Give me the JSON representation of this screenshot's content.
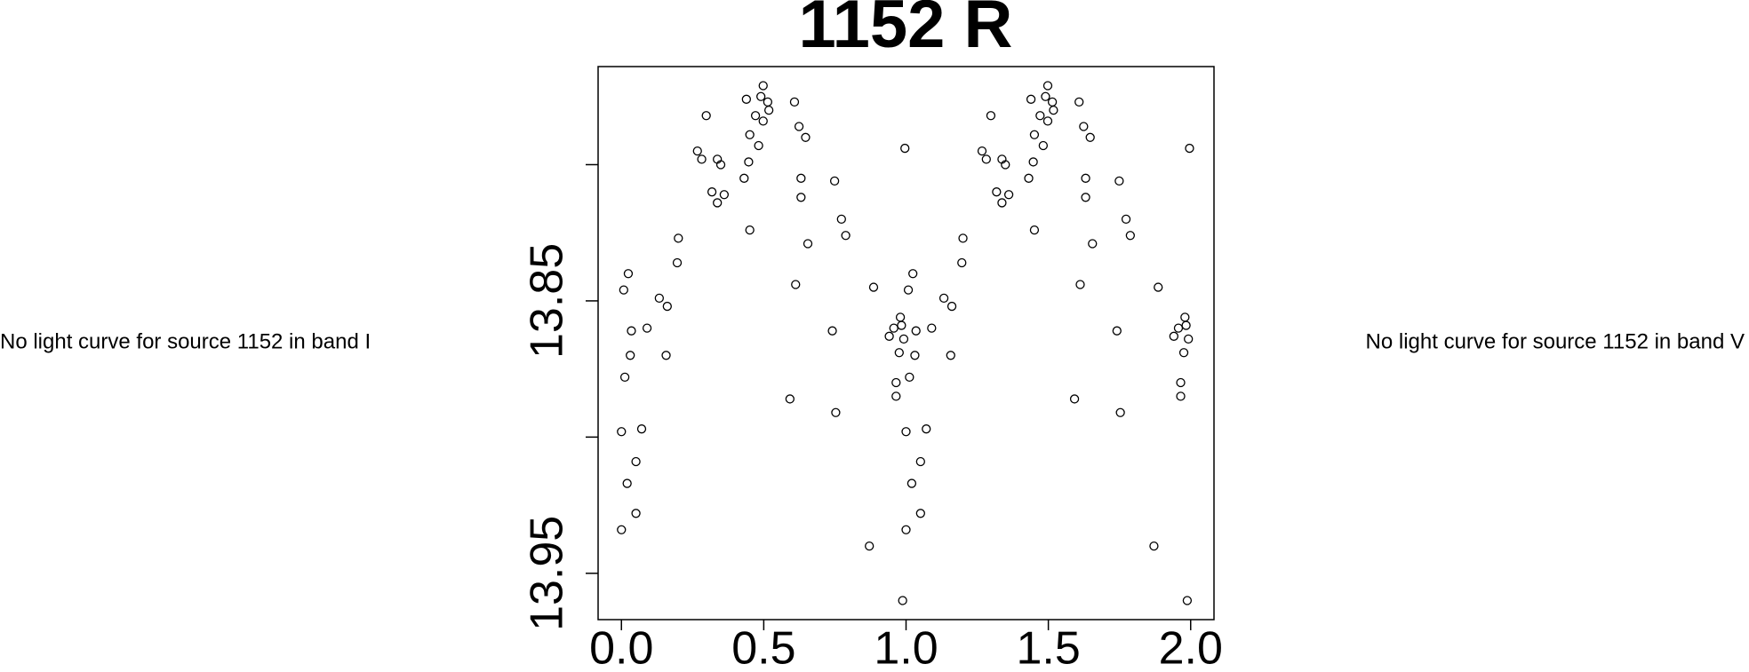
{
  "chart_data": {
    "type": "scatter",
    "title": "1152 R",
    "annotations": [
      "No light curve for source 1152 in band I",
      "No light curve for source 1152 in band V"
    ],
    "color": "#000000",
    "x": [
      0,
      0,
      0.008,
      0.012,
      0.024,
      0.031,
      0.035,
      0.02,
      0.051,
      0.051,
      0.071,
      0.09,
      0.133,
      0.161,
      0.157,
      0.196,
      0.2,
      0.267,
      0.282,
      0.298,
      0.318,
      0.337,
      0.337,
      0.349,
      0.361,
      0.431,
      0.439,
      0.447,
      0.451,
      0.451,
      0.471,
      0.482,
      0.49,
      0.498,
      0.498,
      0.514,
      0.518,
      0.592,
      0.608,
      0.612,
      0.624,
      0.631,
      0.631,
      0.647,
      0.655,
      0.741,
      0.749,
      0.753,
      0.773,
      0.788,
      0.871,
      0.886,
      0.941,
      0.957,
      0.965,
      0.965,
      0.976,
      0.984,
      0.98,
      0.992,
      0.988,
      0.996,
      1,
      1,
      1.008,
      1.012,
      1.024,
      1.031,
      1.035,
      1.02,
      1.051,
      1.051,
      1.071,
      1.09,
      1.133,
      1.161,
      1.157,
      1.196,
      1.2,
      1.267,
      1.282,
      1.298,
      1.318,
      1.337,
      1.337,
      1.349,
      1.361,
      1.431,
      1.439,
      1.447,
      1.451,
      1.451,
      1.471,
      1.482,
      1.49,
      1.498,
      1.498,
      1.514,
      1.518,
      1.592,
      1.608,
      1.612,
      1.624,
      1.631,
      1.631,
      1.647,
      1.655,
      1.741,
      1.749,
      1.753,
      1.773,
      1.788,
      1.871,
      1.886,
      1.941,
      1.957,
      1.965,
      1.965,
      1.976,
      1.984,
      1.98,
      1.992,
      1.988,
      1.996
    ],
    "values": [
      13.934,
      13.898,
      13.846,
      13.878,
      13.84,
      13.87,
      13.861,
      13.917,
      13.909,
      13.928,
      13.897,
      13.86,
      13.849,
      13.852,
      13.87,
      13.836,
      13.827,
      13.795,
      13.798,
      13.782,
      13.81,
      13.814,
      13.798,
      13.8,
      13.811,
      13.805,
      13.776,
      13.799,
      13.789,
      13.824,
      13.782,
      13.793,
      13.775,
      13.771,
      13.784,
      13.777,
      13.78,
      13.886,
      13.777,
      13.844,
      13.786,
      13.805,
      13.812,
      13.79,
      13.829,
      13.861,
      13.806,
      13.891,
      13.82,
      13.826,
      13.94,
      13.845,
      13.863,
      13.86,
      13.885,
      13.88,
      13.869,
      13.859,
      13.856,
      13.864,
      13.96,
      13.794,
      13.934,
      13.898,
      13.846,
      13.878,
      13.84,
      13.87,
      13.861,
      13.917,
      13.909,
      13.928,
      13.897,
      13.86,
      13.849,
      13.852,
      13.87,
      13.836,
      13.827,
      13.795,
      13.798,
      13.782,
      13.81,
      13.814,
      13.798,
      13.8,
      13.811,
      13.805,
      13.776,
      13.799,
      13.789,
      13.824,
      13.782,
      13.793,
      13.775,
      13.771,
      13.784,
      13.777,
      13.78,
      13.886,
      13.777,
      13.844,
      13.786,
      13.805,
      13.812,
      13.79,
      13.829,
      13.861,
      13.806,
      13.891,
      13.82,
      13.826,
      13.94,
      13.845,
      13.863,
      13.86,
      13.885,
      13.88,
      13.869,
      13.859,
      13.856,
      13.864,
      13.96,
      13.794
    ],
    "xlim": [
      -0.082,
      2.082
    ],
    "xticks": [
      {
        "value": 0,
        "label": "0.0"
      },
      0.5,
      {
        "value": 1,
        "label": "1.0"
      },
      1.5,
      {
        "value": 2,
        "label": "2.0"
      }
    ],
    "ylim": [
      13.967,
      13.764
    ],
    "yticks": [
      {
        "value": 13.8,
        "label": null
      },
      13.85,
      {
        "value": 13.9,
        "label": null
      },
      13.95
    ]
  }
}
